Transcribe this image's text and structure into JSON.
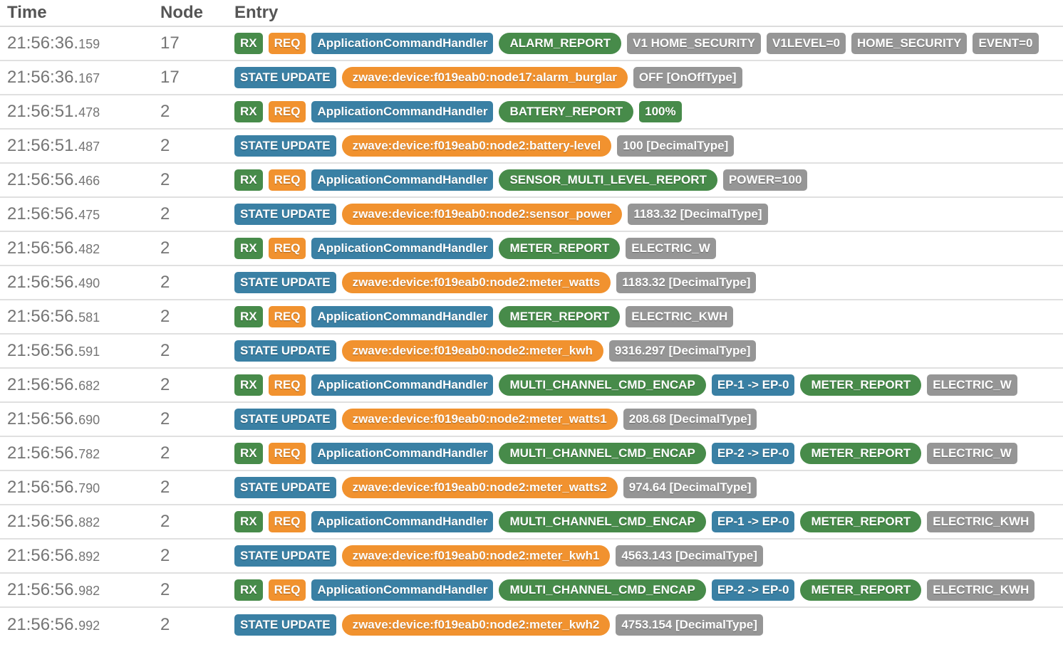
{
  "palette": {
    "green": "#478b4a",
    "orange": "#f1922f",
    "blue": "#3a80a4",
    "gray": "#969696"
  },
  "header": {
    "time": "Time",
    "node": "Node",
    "entry": "Entry"
  },
  "rows": [
    {
      "time": "21:56:36.159",
      "node": "17",
      "badges": [
        {
          "label": "RX",
          "color": "green",
          "shape": "rect"
        },
        {
          "label": "REQ",
          "color": "orange",
          "shape": "rect"
        },
        {
          "label": "ApplicationCommandHandler",
          "color": "blue",
          "shape": "rect"
        },
        {
          "label": "ALARM_REPORT",
          "color": "green",
          "shape": "pill"
        },
        {
          "label": "V1 HOME_SECURITY",
          "color": "gray",
          "shape": "rect"
        },
        {
          "label": "V1LEVEL=0",
          "color": "gray",
          "shape": "rect"
        },
        {
          "label": "HOME_SECURITY",
          "color": "gray",
          "shape": "rect"
        },
        {
          "label": "EVENT=0",
          "color": "gray",
          "shape": "rect"
        }
      ]
    },
    {
      "time": "21:56:36.167",
      "node": "17",
      "badges": [
        {
          "label": "STATE UPDATE",
          "color": "blue",
          "shape": "rect"
        },
        {
          "label": "zwave:device:f019eab0:node17:alarm_burglar",
          "color": "orange",
          "shape": "pill"
        },
        {
          "label": "OFF [OnOffType]",
          "color": "gray",
          "shape": "rect"
        }
      ]
    },
    {
      "time": "21:56:51.478",
      "node": "2",
      "badges": [
        {
          "label": "RX",
          "color": "green",
          "shape": "rect"
        },
        {
          "label": "REQ",
          "color": "orange",
          "shape": "rect"
        },
        {
          "label": "ApplicationCommandHandler",
          "color": "blue",
          "shape": "rect"
        },
        {
          "label": "BATTERY_REPORT",
          "color": "green",
          "shape": "pill"
        },
        {
          "label": "100%",
          "color": "green",
          "shape": "rect"
        }
      ]
    },
    {
      "time": "21:56:51.487",
      "node": "2",
      "badges": [
        {
          "label": "STATE UPDATE",
          "color": "blue",
          "shape": "rect"
        },
        {
          "label": "zwave:device:f019eab0:node2:battery-level",
          "color": "orange",
          "shape": "pill"
        },
        {
          "label": "100 [DecimalType]",
          "color": "gray",
          "shape": "rect"
        }
      ]
    },
    {
      "time": "21:56:56.466",
      "node": "2",
      "badges": [
        {
          "label": "RX",
          "color": "green",
          "shape": "rect"
        },
        {
          "label": "REQ",
          "color": "orange",
          "shape": "rect"
        },
        {
          "label": "ApplicationCommandHandler",
          "color": "blue",
          "shape": "rect"
        },
        {
          "label": "SENSOR_MULTI_LEVEL_REPORT",
          "color": "green",
          "shape": "pill"
        },
        {
          "label": "POWER=100",
          "color": "gray",
          "shape": "rect"
        }
      ]
    },
    {
      "time": "21:56:56.475",
      "node": "2",
      "badges": [
        {
          "label": "STATE UPDATE",
          "color": "blue",
          "shape": "rect"
        },
        {
          "label": "zwave:device:f019eab0:node2:sensor_power",
          "color": "orange",
          "shape": "pill"
        },
        {
          "label": "1183.32 [DecimalType]",
          "color": "gray",
          "shape": "rect"
        }
      ]
    },
    {
      "time": "21:56:56.482",
      "node": "2",
      "badges": [
        {
          "label": "RX",
          "color": "green",
          "shape": "rect"
        },
        {
          "label": "REQ",
          "color": "orange",
          "shape": "rect"
        },
        {
          "label": "ApplicationCommandHandler",
          "color": "blue",
          "shape": "rect"
        },
        {
          "label": "METER_REPORT",
          "color": "green",
          "shape": "pill"
        },
        {
          "label": "ELECTRIC_W",
          "color": "gray",
          "shape": "rect"
        }
      ]
    },
    {
      "time": "21:56:56.490",
      "node": "2",
      "badges": [
        {
          "label": "STATE UPDATE",
          "color": "blue",
          "shape": "rect"
        },
        {
          "label": "zwave:device:f019eab0:node2:meter_watts",
          "color": "orange",
          "shape": "pill"
        },
        {
          "label": "1183.32 [DecimalType]",
          "color": "gray",
          "shape": "rect"
        }
      ]
    },
    {
      "time": "21:56:56.581",
      "node": "2",
      "badges": [
        {
          "label": "RX",
          "color": "green",
          "shape": "rect"
        },
        {
          "label": "REQ",
          "color": "orange",
          "shape": "rect"
        },
        {
          "label": "ApplicationCommandHandler",
          "color": "blue",
          "shape": "rect"
        },
        {
          "label": "METER_REPORT",
          "color": "green",
          "shape": "pill"
        },
        {
          "label": "ELECTRIC_KWH",
          "color": "gray",
          "shape": "rect"
        }
      ]
    },
    {
      "time": "21:56:56.591",
      "node": "2",
      "badges": [
        {
          "label": "STATE UPDATE",
          "color": "blue",
          "shape": "rect"
        },
        {
          "label": "zwave:device:f019eab0:node2:meter_kwh",
          "color": "orange",
          "shape": "pill"
        },
        {
          "label": "9316.297 [DecimalType]",
          "color": "gray",
          "shape": "rect"
        }
      ]
    },
    {
      "time": "21:56:56.682",
      "node": "2",
      "badges": [
        {
          "label": "RX",
          "color": "green",
          "shape": "rect"
        },
        {
          "label": "REQ",
          "color": "orange",
          "shape": "rect"
        },
        {
          "label": "ApplicationCommandHandler",
          "color": "blue",
          "shape": "rect"
        },
        {
          "label": "MULTI_CHANNEL_CMD_ENCAP",
          "color": "green",
          "shape": "pill"
        },
        {
          "label": "EP-1 -> EP-0",
          "color": "blue",
          "shape": "rect"
        },
        {
          "label": "METER_REPORT",
          "color": "green",
          "shape": "pill"
        },
        {
          "label": "ELECTRIC_W",
          "color": "gray",
          "shape": "rect"
        }
      ]
    },
    {
      "time": "21:56:56.690",
      "node": "2",
      "badges": [
        {
          "label": "STATE UPDATE",
          "color": "blue",
          "shape": "rect"
        },
        {
          "label": "zwave:device:f019eab0:node2:meter_watts1",
          "color": "orange",
          "shape": "pill"
        },
        {
          "label": "208.68 [DecimalType]",
          "color": "gray",
          "shape": "rect"
        }
      ]
    },
    {
      "time": "21:56:56.782",
      "node": "2",
      "badges": [
        {
          "label": "RX",
          "color": "green",
          "shape": "rect"
        },
        {
          "label": "REQ",
          "color": "orange",
          "shape": "rect"
        },
        {
          "label": "ApplicationCommandHandler",
          "color": "blue",
          "shape": "rect"
        },
        {
          "label": "MULTI_CHANNEL_CMD_ENCAP",
          "color": "green",
          "shape": "pill"
        },
        {
          "label": "EP-2 -> EP-0",
          "color": "blue",
          "shape": "rect"
        },
        {
          "label": "METER_REPORT",
          "color": "green",
          "shape": "pill"
        },
        {
          "label": "ELECTRIC_W",
          "color": "gray",
          "shape": "rect"
        }
      ]
    },
    {
      "time": "21:56:56.790",
      "node": "2",
      "badges": [
        {
          "label": "STATE UPDATE",
          "color": "blue",
          "shape": "rect"
        },
        {
          "label": "zwave:device:f019eab0:node2:meter_watts2",
          "color": "orange",
          "shape": "pill"
        },
        {
          "label": "974.64 [DecimalType]",
          "color": "gray",
          "shape": "rect"
        }
      ]
    },
    {
      "time": "21:56:56.882",
      "node": "2",
      "badges": [
        {
          "label": "RX",
          "color": "green",
          "shape": "rect"
        },
        {
          "label": "REQ",
          "color": "orange",
          "shape": "rect"
        },
        {
          "label": "ApplicationCommandHandler",
          "color": "blue",
          "shape": "rect"
        },
        {
          "label": "MULTI_CHANNEL_CMD_ENCAP",
          "color": "green",
          "shape": "pill"
        },
        {
          "label": "EP-1 -> EP-0",
          "color": "blue",
          "shape": "rect"
        },
        {
          "label": "METER_REPORT",
          "color": "green",
          "shape": "pill"
        },
        {
          "label": "ELECTRIC_KWH",
          "color": "gray",
          "shape": "rect"
        }
      ]
    },
    {
      "time": "21:56:56.892",
      "node": "2",
      "badges": [
        {
          "label": "STATE UPDATE",
          "color": "blue",
          "shape": "rect"
        },
        {
          "label": "zwave:device:f019eab0:node2:meter_kwh1",
          "color": "orange",
          "shape": "pill"
        },
        {
          "label": "4563.143 [DecimalType]",
          "color": "gray",
          "shape": "rect"
        }
      ]
    },
    {
      "time": "21:56:56.982",
      "node": "2",
      "badges": [
        {
          "label": "RX",
          "color": "green",
          "shape": "rect"
        },
        {
          "label": "REQ",
          "color": "orange",
          "shape": "rect"
        },
        {
          "label": "ApplicationCommandHandler",
          "color": "blue",
          "shape": "rect"
        },
        {
          "label": "MULTI_CHANNEL_CMD_ENCAP",
          "color": "green",
          "shape": "pill"
        },
        {
          "label": "EP-2 -> EP-0",
          "color": "blue",
          "shape": "rect"
        },
        {
          "label": "METER_REPORT",
          "color": "green",
          "shape": "pill"
        },
        {
          "label": "ELECTRIC_KWH",
          "color": "gray",
          "shape": "rect"
        }
      ]
    },
    {
      "time": "21:56:56.992",
      "node": "2",
      "badges": [
        {
          "label": "STATE UPDATE",
          "color": "blue",
          "shape": "rect"
        },
        {
          "label": "zwave:device:f019eab0:node2:meter_kwh2",
          "color": "orange",
          "shape": "pill"
        },
        {
          "label": "4753.154 [DecimalType]",
          "color": "gray",
          "shape": "rect"
        }
      ]
    }
  ]
}
